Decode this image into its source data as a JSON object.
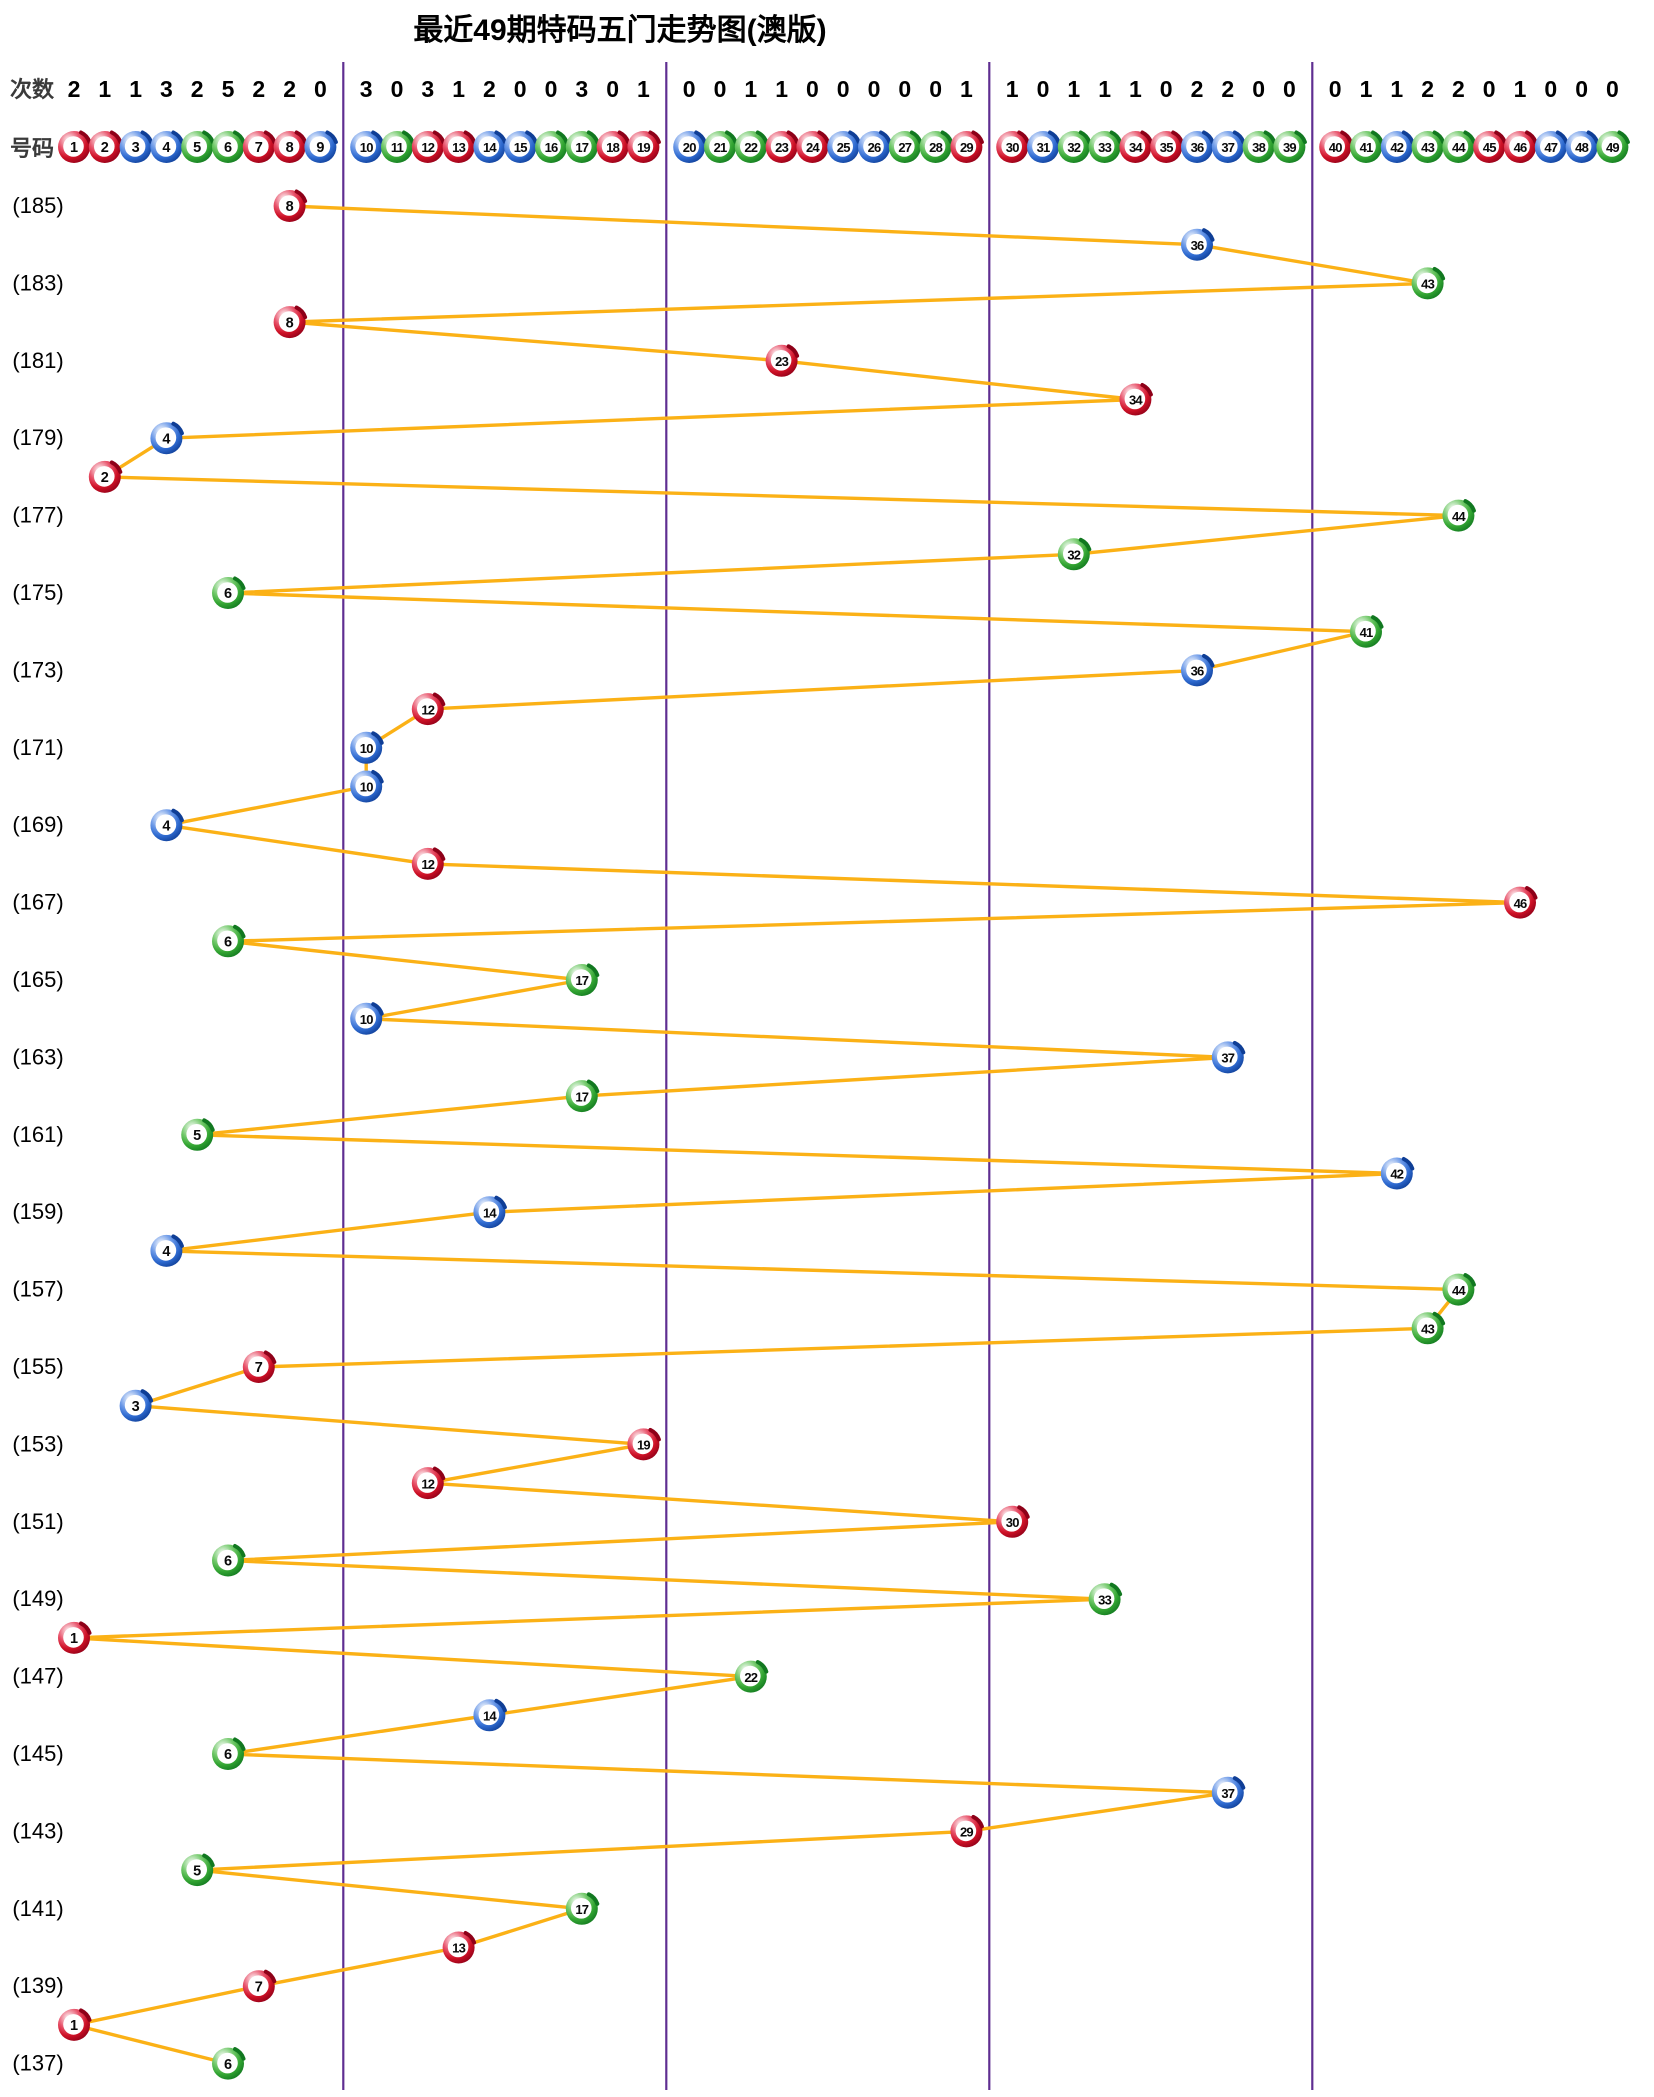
{
  "page_title": "最近49期特码五门走势图(澳版)",
  "row_headers": {
    "counts_label": "次数",
    "numbers_label": "号码"
  },
  "chart_data": {
    "type": "line",
    "title": "最近49期特码五门走势图(澳版)",
    "description": "Trend chart of the special number over the last 49 draws, periods 185 down to 137, numbers 1-49 split into five door groups",
    "number_range": [
      1,
      49
    ],
    "period_range": [
      185,
      137
    ],
    "groups": [
      [
        1,
        9
      ],
      [
        10,
        19
      ],
      [
        20,
        29
      ],
      [
        30,
        39
      ],
      [
        40,
        49
      ]
    ],
    "counts_row_label": "次数",
    "numbers_row_label": "号码",
    "counts": [
      2,
      1,
      1,
      3,
      2,
      5,
      2,
      2,
      0,
      3,
      0,
      3,
      1,
      2,
      0,
      0,
      3,
      0,
      1,
      0,
      0,
      1,
      1,
      0,
      0,
      0,
      0,
      0,
      1,
      1,
      0,
      1,
      1,
      1,
      0,
      2,
      2,
      0,
      0,
      0,
      1,
      1,
      2,
      2,
      0,
      1,
      0,
      0,
      0
    ],
    "period_labels": [
      "(185)",
      "(183)",
      "(181)",
      "(179)",
      "(177)",
      "(175)",
      "(173)",
      "(171)",
      "(169)",
      "(167)",
      "(165)",
      "(163)",
      "(161)",
      "(159)",
      "(157)",
      "(155)",
      "(153)",
      "(151)",
      "(149)",
      "(147)",
      "(145)",
      "(143)",
      "(141)",
      "(139)",
      "(137)"
    ],
    "points": [
      {
        "period": 185,
        "number": 8
      },
      {
        "period": 184,
        "number": 36
      },
      {
        "period": 183,
        "number": 43
      },
      {
        "period": 182,
        "number": 8
      },
      {
        "period": 181,
        "number": 23
      },
      {
        "period": 180,
        "number": 34
      },
      {
        "period": 179,
        "number": 4
      },
      {
        "period": 178,
        "number": 2
      },
      {
        "period": 177,
        "number": 44
      },
      {
        "period": 176,
        "number": 32
      },
      {
        "period": 175,
        "number": 6
      },
      {
        "period": 174,
        "number": 41
      },
      {
        "period": 173,
        "number": 36
      },
      {
        "period": 172,
        "number": 12
      },
      {
        "period": 171,
        "number": 10
      },
      {
        "period": 170,
        "number": 10
      },
      {
        "period": 169,
        "number": 4
      },
      {
        "period": 168,
        "number": 12
      },
      {
        "period": 167,
        "number": 46
      },
      {
        "period": 166,
        "number": 6
      },
      {
        "period": 165,
        "number": 17
      },
      {
        "period": 164,
        "number": 10
      },
      {
        "period": 163,
        "number": 37
      },
      {
        "period": 162,
        "number": 17
      },
      {
        "period": 161,
        "number": 5
      },
      {
        "period": 160,
        "number": 42
      },
      {
        "period": 159,
        "number": 14
      },
      {
        "period": 158,
        "number": 4
      },
      {
        "period": 157,
        "number": 44
      },
      {
        "period": 156,
        "number": 43
      },
      {
        "period": 155,
        "number": 7
      },
      {
        "period": 154,
        "number": 3
      },
      {
        "period": 153,
        "number": 19
      },
      {
        "period": 152,
        "number": 12
      },
      {
        "period": 151,
        "number": 30
      },
      {
        "period": 150,
        "number": 6
      },
      {
        "period": 149,
        "number": 33
      },
      {
        "period": 148,
        "number": 1
      },
      {
        "period": 147,
        "number": 22
      },
      {
        "period": 146,
        "number": 14
      },
      {
        "period": 145,
        "number": 6
      },
      {
        "period": 144,
        "number": 37
      },
      {
        "period": 143,
        "number": 29
      },
      {
        "period": 142,
        "number": 5
      },
      {
        "period": 141,
        "number": 17
      },
      {
        "period": 140,
        "number": 13
      },
      {
        "period": 139,
        "number": 7
      },
      {
        "period": 138,
        "number": 1
      },
      {
        "period": 137,
        "number": 6
      }
    ],
    "ball_colors": {
      "red": [
        1,
        2,
        7,
        8,
        12,
        13,
        18,
        19,
        23,
        24,
        29,
        30,
        34,
        35,
        40,
        45,
        46
      ],
      "blue": [
        3,
        4,
        9,
        10,
        14,
        15,
        20,
        25,
        26,
        31,
        36,
        37,
        42,
        47,
        48
      ],
      "green": [
        5,
        6,
        11,
        16,
        17,
        21,
        22,
        27,
        28,
        32,
        33,
        38,
        39,
        43,
        44,
        49
      ]
    },
    "palette": {
      "line": "#FBB116",
      "divider": "#5F2E91",
      "red_main": "#CE1126",
      "red_dark": "#8E0018",
      "blue_main": "#2E6AD0",
      "blue_dark": "#0F3E96",
      "green_main": "#33A532",
      "green_dark": "#117820",
      "text": "#000000"
    }
  }
}
